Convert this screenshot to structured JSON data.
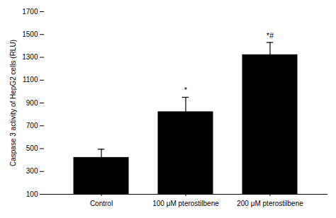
{
  "chart_data": {
    "type": "bar",
    "categories": [
      "Control",
      "100 μM pterostilbene",
      "200 μM pterostilbene"
    ],
    "values": [
      420,
      820,
      1320
    ],
    "errors": [
      75,
      130,
      110
    ],
    "color": "#000000",
    "ylim": [
      100,
      1700
    ],
    "yticks": [
      100,
      300,
      500,
      700,
      900,
      1100,
      1300,
      1500,
      1700
    ],
    "ylabel": "Caspase 3 activity of HepG2 cells (RLU)",
    "annotations": [
      {
        "category": "100 μM pterostilbene",
        "text": "*"
      },
      {
        "category": "200 μM pterostilbene",
        "text": "*#"
      }
    ],
    "grid": false
  }
}
